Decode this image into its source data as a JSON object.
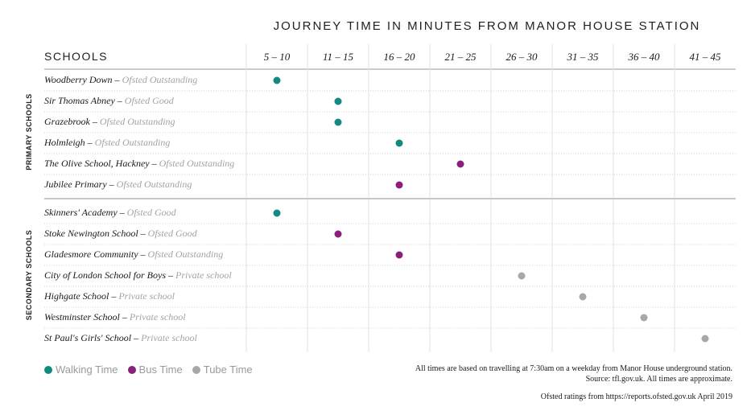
{
  "chart_data": {
    "type": "scatter",
    "title": "JOURNEY TIME IN MINUTES FROM MANOR HOUSE STATION",
    "row_header": "SCHOOLS",
    "categories": [
      "5 – 10",
      "11 – 15",
      "16 – 20",
      "21 – 25",
      "26 – 30",
      "31 – 35",
      "36 – 40",
      "41 – 45"
    ],
    "groups": [
      {
        "name": "PRIMARY SCHOOLS",
        "rows": [
          {
            "school": "Woodberry Down",
            "rating": "Ofsted Outstanding",
            "time": "5 – 10",
            "mode": "Walking Time"
          },
          {
            "school": "Sir Thomas Abney",
            "rating": "Ofsted Good",
            "time": "11 – 15",
            "mode": "Walking Time"
          },
          {
            "school": "Grazebrook",
            "rating": "Ofsted Outstanding",
            "time": "11 – 15",
            "mode": "Walking Time"
          },
          {
            "school": "Holmleigh",
            "rating": "Ofsted Outstanding",
            "time": "16 – 20",
            "mode": "Walking Time"
          },
          {
            "school": "The Olive School, Hackney",
            "rating": "Ofsted Outstanding",
            "time": "21 – 25",
            "mode": "Bus Time"
          },
          {
            "school": "Jubilee Primary",
            "rating": "Ofsted Outstanding",
            "time": "16 – 20",
            "mode": "Bus Time"
          }
        ]
      },
      {
        "name": "SECONDARY SCHOOLS",
        "rows": [
          {
            "school": "Skinners' Academy",
            "rating": "Ofsted Good",
            "time": "5 – 10",
            "mode": "Walking Time"
          },
          {
            "school": "Stoke Newington School",
            "rating": "Ofsted Good",
            "time": "11 – 15",
            "mode": "Bus Time"
          },
          {
            "school": "Gladesmore Community",
            "rating": "Ofsted Outstanding",
            "time": "16 – 20",
            "mode": "Bus Time"
          },
          {
            "school": "City of London School for Boys",
            "rating": "Private school",
            "time": "26 – 30",
            "mode": "Tube Time"
          },
          {
            "school": "Highgate School",
            "rating": "Private school",
            "time": "31 – 35",
            "mode": "Tube Time"
          },
          {
            "school": "Westminster School",
            "rating": "Private school",
            "time": "36 – 40",
            "mode": "Tube Time"
          },
          {
            "school": "St Paul's Girls' School",
            "rating": "Private school",
            "time": "41 – 45",
            "mode": "Tube Time"
          }
        ]
      }
    ],
    "legend": [
      {
        "name": "Walking Time",
        "color": "#138a80"
      },
      {
        "name": "Bus Time",
        "color": "#8b1f7d"
      },
      {
        "name": "Tube Time",
        "color": "#a8a8a8"
      }
    ],
    "legend_position": "bottom-left"
  },
  "notes": {
    "line1": "All times are based on travelling at 7:30am on a weekday from Manor House underground station.",
    "line2": "Source: tfl.gov.uk. All times are approximate.",
    "line3": "Ofsted ratings from https://reports.ofsted.gov.uk April 2019"
  }
}
